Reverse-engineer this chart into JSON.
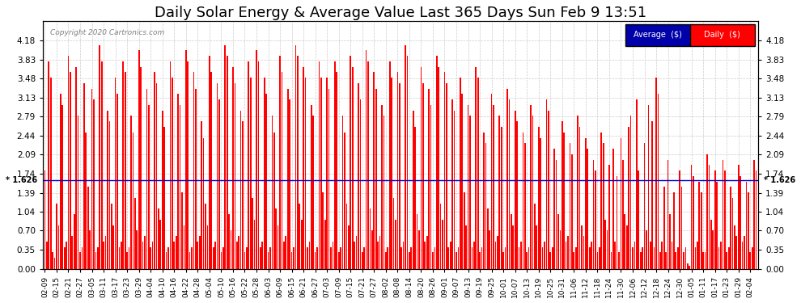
{
  "title": "Daily Solar Energy & Average Value Last 365 Days Sun Feb 9 13:51",
  "copyright": "Copyright 2020 Cartronics.com",
  "average_value": 1.626,
  "ylim": [
    0.0,
    4.53
  ],
  "yticks": [
    0.0,
    0.35,
    0.7,
    1.04,
    1.39,
    1.74,
    2.09,
    2.44,
    2.79,
    3.13,
    3.48,
    3.83,
    4.18
  ],
  "bar_color": "#FF0000",
  "avg_line_color": "#0000CC",
  "bg_color": "#FFFFFF",
  "grid_color": "#CCCCCC",
  "legend_avg_bg": "#0000AA",
  "legend_daily_bg": "#FF0000",
  "title_fontsize": 13,
  "tick_fontsize": 7.5,
  "date_labels": [
    "02-09",
    "02-15",
    "02-21",
    "02-27",
    "03-05",
    "03-11",
    "03-17",
    "03-23",
    "03-29",
    "04-04",
    "04-10",
    "04-16",
    "04-22",
    "04-28",
    "05-04",
    "05-10",
    "05-16",
    "05-22",
    "05-28",
    "06-03",
    "06-09",
    "06-15",
    "06-21",
    "06-27",
    "07-03",
    "07-09",
    "07-15",
    "07-21",
    "07-27",
    "08-02",
    "08-08",
    "08-14",
    "08-20",
    "08-26",
    "09-01",
    "09-07",
    "09-13",
    "09-19",
    "09-25",
    "10-01",
    "10-07",
    "10-13",
    "10-19",
    "10-25",
    "10-31",
    "11-06",
    "11-12",
    "11-18",
    "11-24",
    "11-30",
    "12-06",
    "12-12",
    "12-18",
    "12-24",
    "12-30",
    "01-05",
    "01-11",
    "01-17",
    "01-23",
    "01-29",
    "02-04"
  ],
  "values": [
    1.8,
    0.5,
    3.8,
    3.5,
    0.3,
    0.2,
    1.2,
    0.8,
    3.2,
    3.0,
    0.4,
    0.5,
    3.9,
    3.6,
    0.6,
    1.0,
    3.7,
    2.8,
    0.3,
    0.4,
    3.4,
    2.5,
    1.5,
    0.7,
    3.3,
    3.1,
    0.3,
    0.4,
    4.1,
    3.8,
    0.5,
    0.6,
    2.9,
    2.7,
    1.2,
    0.8,
    3.5,
    3.2,
    0.4,
    0.5,
    3.8,
    3.6,
    0.3,
    0.4,
    2.8,
    2.5,
    1.3,
    0.7,
    4.0,
    3.7,
    0.5,
    0.6,
    3.3,
    3.0,
    0.4,
    0.5,
    3.6,
    3.4,
    1.1,
    0.9,
    2.9,
    2.6,
    0.3,
    0.4,
    3.8,
    3.5,
    0.5,
    0.6,
    3.2,
    3.0,
    1.4,
    0.8,
    4.0,
    3.8,
    0.3,
    0.4,
    3.6,
    3.3,
    0.5,
    0.6,
    2.7,
    2.4,
    1.2,
    0.8,
    3.9,
    3.6,
    0.4,
    0.5,
    3.4,
    3.1,
    0.3,
    0.4,
    4.1,
    3.9,
    1.0,
    0.7,
    3.7,
    3.4,
    0.5,
    0.6,
    2.9,
    2.7,
    0.3,
    0.4,
    3.8,
    3.5,
    1.3,
    0.9,
    4.0,
    3.8,
    0.4,
    0.5,
    3.5,
    3.2,
    0.3,
    0.4,
    2.8,
    2.5,
    1.1,
    0.8,
    3.9,
    3.6,
    0.5,
    0.6,
    3.3,
    3.1,
    0.3,
    0.4,
    4.1,
    3.9,
    1.2,
    0.9,
    3.7,
    3.5,
    0.4,
    0.5,
    3.0,
    2.8,
    0.3,
    0.4,
    3.8,
    3.5,
    1.4,
    0.9,
    3.5,
    3.3,
    0.4,
    0.5,
    3.8,
    3.6,
    0.3,
    0.4,
    2.8,
    2.5,
    1.2,
    0.8,
    3.9,
    3.7,
    0.5,
    0.6,
    3.4,
    3.1,
    0.3,
    0.4,
    4.0,
    3.8,
    1.1,
    0.7,
    3.6,
    3.3,
    0.5,
    0.6,
    3.0,
    2.8,
    0.3,
    0.4,
    3.8,
    3.5,
    1.3,
    0.9,
    3.6,
    3.4,
    0.4,
    0.5,
    4.1,
    3.9,
    0.3,
    0.4,
    2.9,
    2.6,
    1.0,
    0.7,
    3.7,
    3.4,
    0.5,
    0.6,
    3.3,
    3.0,
    0.3,
    0.4,
    3.9,
    3.7,
    1.2,
    0.9,
    3.6,
    3.4,
    0.4,
    0.5,
    3.1,
    2.9,
    0.3,
    0.4,
    3.5,
    3.2,
    1.4,
    0.8,
    3.0,
    2.8,
    0.4,
    0.5,
    3.7,
    3.5,
    0.3,
    0.4,
    2.5,
    2.3,
    1.1,
    0.7,
    3.2,
    3.0,
    0.5,
    0.6,
    2.8,
    2.6,
    0.3,
    0.4,
    3.3,
    3.1,
    1.0,
    0.8,
    2.9,
    2.7,
    0.4,
    0.5,
    2.5,
    2.3,
    0.3,
    0.4,
    3.0,
    2.8,
    1.2,
    0.8,
    2.6,
    2.4,
    0.4,
    0.5,
    3.1,
    2.9,
    0.3,
    0.4,
    2.2,
    2.0,
    1.0,
    0.7,
    2.7,
    2.5,
    0.5,
    0.6,
    2.3,
    2.1,
    0.3,
    0.4,
    2.8,
    2.6,
    0.8,
    0.6,
    2.4,
    2.2,
    0.4,
    0.5,
    2.0,
    1.8,
    0.3,
    0.4,
    2.5,
    2.3,
    0.9,
    0.7,
    1.9,
    0.3,
    2.2,
    0.5,
    1.7,
    0.3,
    2.4,
    2.0,
    1.0,
    0.8,
    2.6,
    2.8,
    0.4,
    0.5,
    3.1,
    1.8,
    0.3,
    0.4,
    2.3,
    0.7,
    3.0,
    0.5,
    2.7,
    0.4,
    3.5,
    3.2,
    0.3,
    0.5,
    1.5,
    0.3,
    2.0,
    1.0,
    0.5,
    1.4,
    0.3,
    0.4,
    1.8,
    1.5,
    0.3,
    0.4,
    0.1,
    0.05,
    1.9,
    1.7,
    0.4,
    0.5,
    1.6,
    1.4,
    0.3,
    0.3,
    2.1,
    1.9,
    0.9,
    0.7,
    1.8,
    1.6,
    0.4,
    0.5,
    2.0,
    1.8,
    0.3,
    0.4,
    1.5,
    1.3,
    0.8,
    0.6,
    1.9,
    1.7,
    0.5,
    0.6,
    1.6,
    1.4,
    0.3,
    0.4,
    2.0,
    1.8
  ]
}
